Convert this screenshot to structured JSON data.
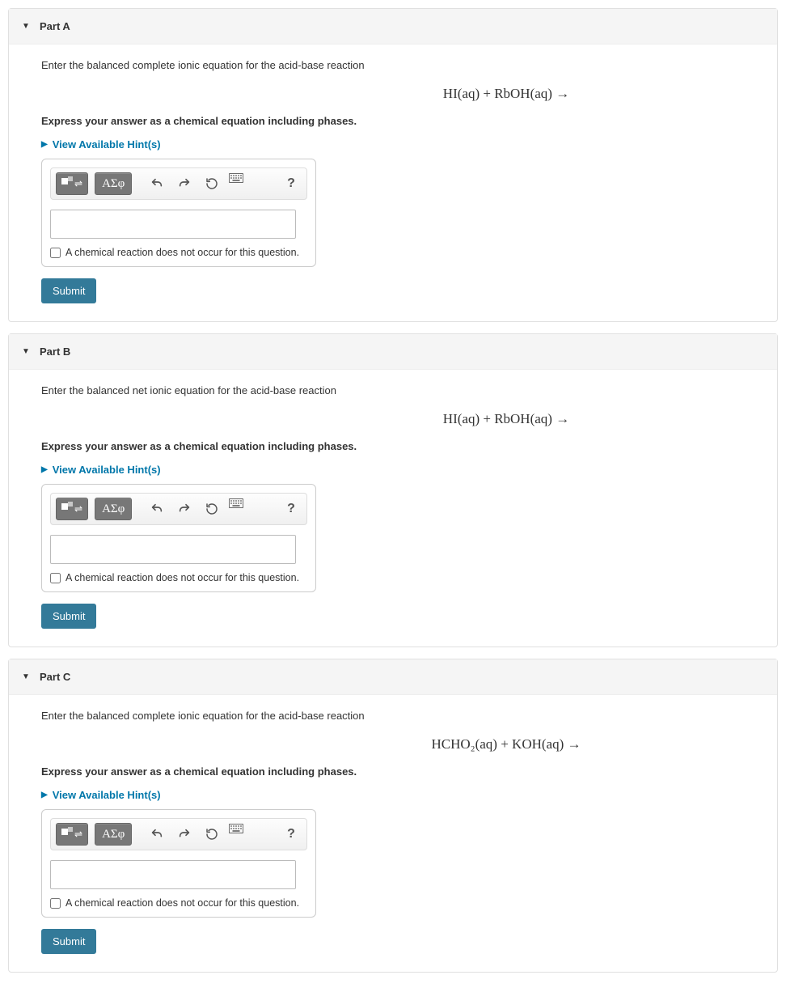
{
  "common": {
    "hints_label": "View Available Hint(s)",
    "checkbox_label": "A chemical reaction does not occur for this question.",
    "submit_label": "Submit",
    "toolbar": {
      "greek_label": "ΑΣφ",
      "help_label": "?"
    },
    "instruction": "Express your answer as a chemical equation including phases."
  },
  "parts": [
    {
      "id": "A",
      "title": "Part A",
      "prompt": "Enter the balanced complete ionic equation for the acid-base reaction",
      "equation_html": "HI(aq) + RbOH(aq) →"
    },
    {
      "id": "B",
      "title": "Part B",
      "prompt": "Enter the balanced net ionic equation for the acid-base reaction",
      "equation_html": "HI(aq)  +  RbOH(aq) →"
    },
    {
      "id": "C",
      "title": "Part C",
      "prompt": "Enter the balanced complete ionic equation for the acid-base reaction",
      "equation_html": "HCHO₂(aq)  +  KOH(aq) →"
    }
  ],
  "colors": {
    "header_bg": "#f5f5f5",
    "border": "#e0e0e0",
    "link": "#0077aa",
    "submit_bg": "#337a99",
    "toolbar_dark": "#777777"
  }
}
